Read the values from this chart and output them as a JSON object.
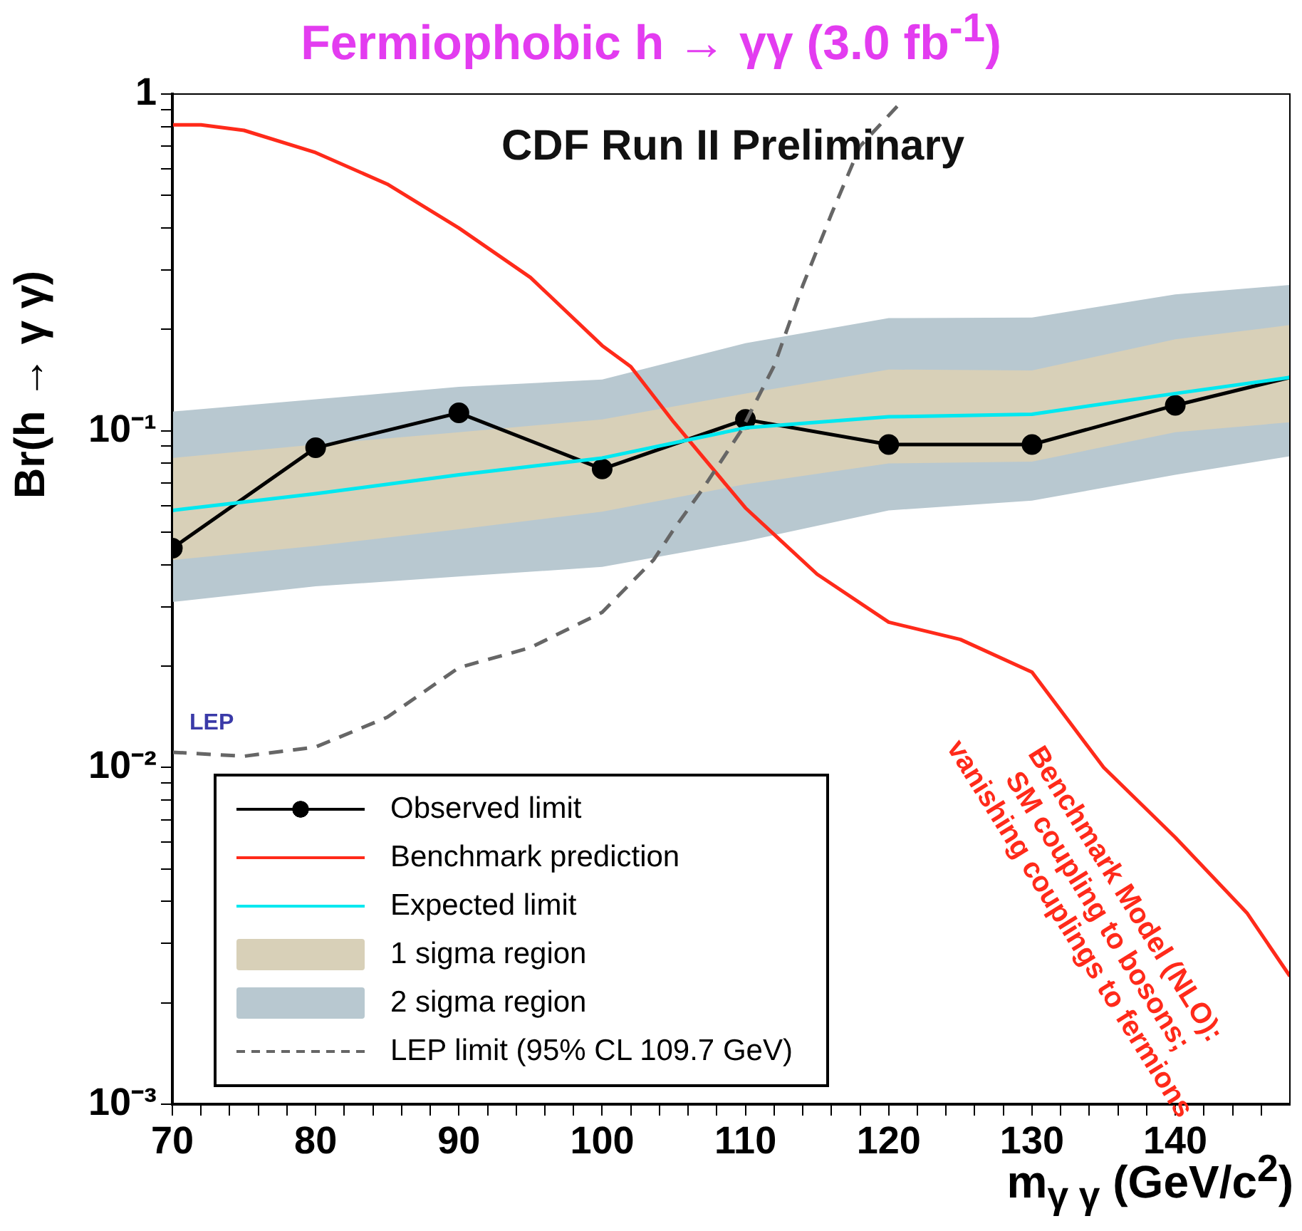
{
  "chart_data": {
    "type": "line",
    "title": "Fermiophobic h → γγ (3.0 fb$^{-1}$)",
    "xlabel": "m$_{γ γ}$ (GeV/c$^{2}$)",
    "ylabel": "Br(h → γ γ)",
    "annotations": [
      "CDF Run II Preliminary",
      "LEP",
      "Benchmark Model (NLO):\nSM coupling to bosons;\nvanishing couplings to fermions"
    ],
    "log": "y",
    "grid": false,
    "legend": "bottom left",
    "xlim": [
      70,
      148
    ],
    "ylim": [
      0.001,
      1
    ],
    "xticks": [
      70,
      {
        "value": 72,
        "label": null
      },
      {
        "value": 74,
        "label": null
      },
      {
        "value": 76,
        "label": null
      },
      {
        "value": 78,
        "label": null
      },
      80,
      {
        "value": 82,
        "label": null
      },
      {
        "value": 84,
        "label": null
      },
      {
        "value": 86,
        "label": null
      },
      {
        "value": 88,
        "label": null
      },
      90,
      {
        "value": 92,
        "label": null
      },
      {
        "value": 94,
        "label": null
      },
      {
        "value": 96,
        "label": null
      },
      {
        "value": 98,
        "label": null
      },
      100,
      {
        "value": 102,
        "label": null
      },
      {
        "value": 104,
        "label": null
      },
      {
        "value": 106,
        "label": null
      },
      {
        "value": 108,
        "label": null
      },
      110,
      {
        "value": 112,
        "label": null
      },
      {
        "value": 114,
        "label": null
      },
      {
        "value": 116,
        "label": null
      },
      {
        "value": 118,
        "label": null
      },
      120,
      {
        "value": 122,
        "label": null
      },
      {
        "value": 124,
        "label": null
      },
      {
        "value": 126,
        "label": null
      },
      {
        "value": 128,
        "label": null
      },
      130,
      {
        "value": 132,
        "label": null
      },
      {
        "value": 134,
        "label": null
      },
      {
        "value": 136,
        "label": null
      },
      {
        "value": 138,
        "label": null
      },
      140,
      {
        "value": 142,
        "label": null
      },
      {
        "value": 144,
        "label": null
      },
      {
        "value": 146,
        "label": null
      }
    ],
    "yticks": [
      {
        "value": 0.001,
        "label": "10⁻³"
      },
      {
        "value": 0.002,
        "label": null
      },
      {
        "value": 0.003,
        "label": null
      },
      {
        "value": 0.004,
        "label": null
      },
      {
        "value": 0.005,
        "label": null
      },
      {
        "value": 0.006,
        "label": null
      },
      {
        "value": 0.007,
        "label": null
      },
      {
        "value": 0.008,
        "label": null
      },
      {
        "value": 0.009,
        "label": null
      },
      {
        "value": 0.01,
        "label": "10⁻²"
      },
      {
        "value": 0.02,
        "label": null
      },
      {
        "value": 0.03,
        "label": null
      },
      {
        "value": 0.04,
        "label": null
      },
      {
        "value": 0.05,
        "label": null
      },
      {
        "value": 0.06,
        "label": null
      },
      {
        "value": 0.07,
        "label": null
      },
      {
        "value": 0.08,
        "label": null
      },
      {
        "value": 0.09,
        "label": null
      },
      {
        "value": 0.1,
        "label": "10⁻¹"
      },
      {
        "value": 0.2,
        "label": null
      },
      {
        "value": 0.3,
        "label": null
      },
      {
        "value": 0.4,
        "label": null
      },
      {
        "value": 0.5,
        "label": null
      },
      {
        "value": 0.6,
        "label": null
      },
      {
        "value": 0.7,
        "label": null
      },
      {
        "value": 0.8,
        "label": null
      },
      {
        "value": 0.9,
        "label": null
      },
      1
    ],
    "series": [
      {
        "name": "Observed limit",
        "type": "line",
        "color": "#000000",
        "marker": "circle",
        "line_style": "solid",
        "x": [
          70,
          80,
          90,
          100,
          110,
          120,
          130,
          140,
          148
        ],
        "values": [
          0.0448,
          0.089,
          0.113,
          0.077,
          0.108,
          0.091,
          0.091,
          0.119,
          0.144
        ]
      },
      {
        "name": "Benchmark prediction",
        "type": "line",
        "color": "#ff2a1a",
        "marker": "none",
        "line_style": "solid",
        "x": [
          70,
          72,
          75,
          80,
          85,
          90,
          95,
          100,
          102,
          105,
          110,
          115,
          120,
          125,
          130,
          135,
          140,
          145,
          148
        ],
        "values": [
          0.81,
          0.81,
          0.78,
          0.67,
          0.54,
          0.4,
          0.285,
          0.179,
          0.155,
          0.106,
          0.059,
          0.0375,
          0.027,
          0.024,
          0.0192,
          0.01,
          0.0062,
          0.0037,
          0.0024
        ]
      },
      {
        "name": "Expected limit",
        "type": "line",
        "color": "#00e8f0",
        "marker": "none",
        "line_style": "solid",
        "x": [
          70,
          80,
          90,
          100,
          110,
          120,
          130,
          140,
          148
        ],
        "values": [
          0.058,
          0.065,
          0.074,
          0.083,
          0.102,
          0.11,
          0.112,
          0.129,
          0.144
        ]
      },
      {
        "name": "1 sigma region",
        "type": "line",
        "color": "#d8d0b8",
        "x": [
          70,
          80,
          90,
          100,
          110,
          120,
          130,
          140,
          148
        ],
        "values": [
          null,
          null,
          null,
          null,
          null,
          null,
          null,
          null,
          null
        ],
        "lower": [
          0.0413,
          0.0455,
          0.051,
          0.0575,
          0.0694,
          0.08,
          0.081,
          0.099,
          0.106
        ],
        "upper": [
          0.083,
          0.091,
          0.099,
          0.108,
          0.129,
          0.152,
          0.151,
          0.187,
          0.206
        ]
      },
      {
        "name": "2 sigma region",
        "type": "line",
        "color": "#b8c8d0",
        "x": [
          70,
          80,
          90,
          100,
          110,
          120,
          130,
          140,
          148
        ],
        "values": [
          null,
          null,
          null,
          null,
          null,
          null,
          null,
          null,
          null
        ],
        "lower": [
          0.031,
          0.0345,
          0.0369,
          0.0394,
          0.047,
          0.058,
          0.062,
          0.074,
          0.084
        ],
        "upper": [
          0.114,
          0.124,
          0.135,
          0.142,
          0.182,
          0.216,
          0.217,
          0.254,
          0.271
        ]
      },
      {
        "name": "LEP limit (95% CL  109.7 GeV)",
        "type": "line",
        "color": "#666666",
        "marker": "none",
        "line_style": "dashed",
        "x": [
          70,
          75,
          80,
          85,
          90,
          95,
          100,
          103.6,
          105,
          107,
          109.7,
          112,
          114,
          116,
          118,
          121
        ],
        "values": [
          0.0111,
          0.0108,
          0.0115,
          0.0141,
          0.0198,
          0.0227,
          0.0289,
          0.0414,
          0.051,
          0.067,
          0.1,
          0.156,
          0.27,
          0.44,
          0.7,
          0.96
        ]
      }
    ]
  }
}
